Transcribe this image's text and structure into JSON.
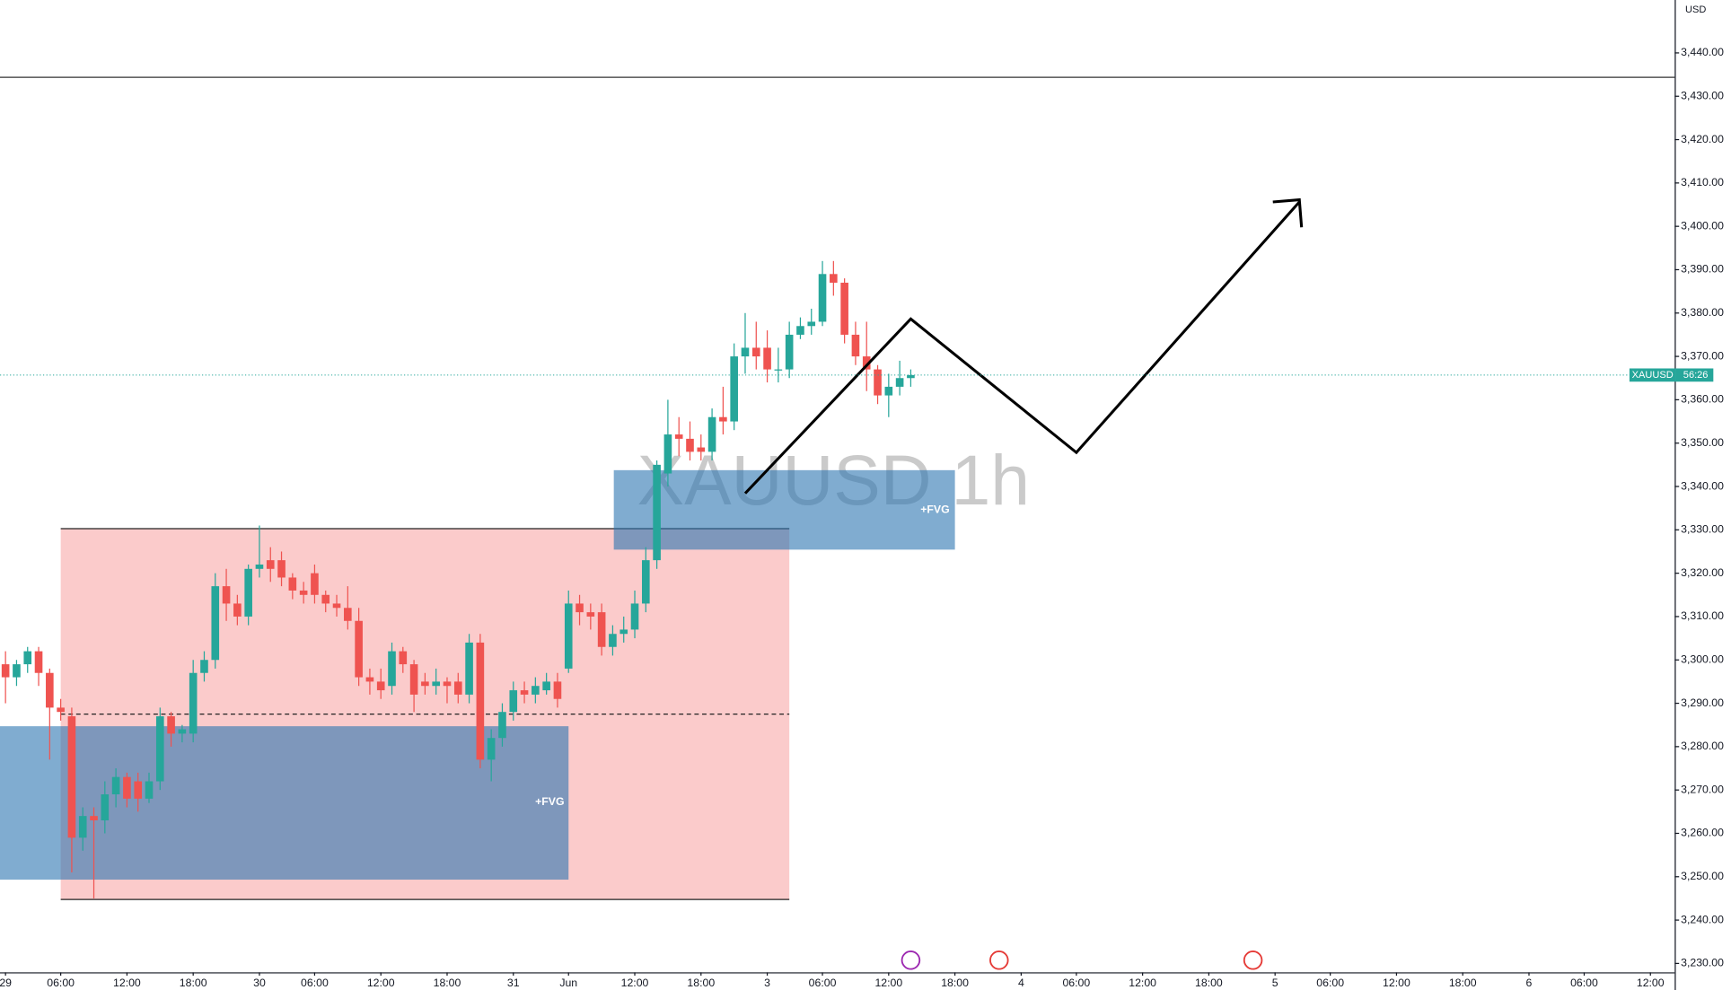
{
  "chart_data": {
    "type": "candlestick",
    "watermark": "XAUUSD 1h",
    "currency": "USD",
    "price_label": {
      "symbol": "XAUUSD",
      "countdown": "56:26"
    },
    "annotations": [
      "+FVG",
      "+FVG"
    ],
    "up_color": "#26a69a",
    "down_color": "#ef5350",
    "series": [
      {
        "name": "XAUUSD",
        "open": [
          3299,
          3296,
          3299,
          3302,
          3297,
          3289,
          3287,
          3259,
          3264,
          3263,
          3269,
          3273,
          3272,
          3268,
          3272,
          3287,
          3283,
          3283,
          3297,
          3300,
          3317,
          3313,
          3310,
          3321,
          3323,
          3323,
          3319,
          3316,
          3320,
          3315,
          3313,
          3312,
          3309,
          3296,
          3295,
          3294,
          3302,
          3299,
          3295,
          3294,
          3295,
          3295,
          3292,
          3304,
          3277,
          3282,
          3288,
          3293,
          3292,
          3293,
          3295,
          3298,
          3313,
          3311,
          3311,
          3303,
          3306,
          3307,
          3313,
          3323,
          3343,
          3352,
          3351,
          3349,
          3348,
          3356,
          3355,
          3370,
          3372,
          3372,
          3367,
          3367,
          3375,
          3377,
          3378,
          3389,
          3387,
          3375,
          3370,
          3367,
          3361,
          3363,
          3365
        ],
        "high": [
          3302,
          3300,
          3303,
          3303,
          3298,
          3291,
          3289,
          3266,
          3266,
          3272,
          3275,
          3274,
          3274,
          3274,
          3289,
          3288,
          3285,
          3300,
          3302,
          3320,
          3321,
          3315,
          3322,
          3331,
          3326,
          3325,
          3320,
          3318,
          3322,
          3316,
          3315,
          3317,
          3312,
          3298,
          3298,
          3304,
          3303,
          3300,
          3297,
          3298,
          3296,
          3297,
          3306,
          3306,
          3284,
          3290,
          3295,
          3295,
          3296,
          3297,
          3297,
          3316,
          3315,
          3313,
          3313,
          3308,
          3310,
          3316,
          3326,
          3346,
          3360,
          3356,
          3355,
          3352,
          3358,
          3363,
          3373,
          3380,
          3378,
          3376,
          3372,
          3378,
          3379,
          3381,
          3392,
          3392,
          3388,
          3378,
          3378,
          3368,
          3366,
          3369,
          3367
        ],
        "low": [
          3290,
          3294,
          3297,
          3294,
          3277,
          3286,
          3251,
          3256,
          3245,
          3260,
          3266,
          3266,
          3265,
          3267,
          3270,
          3280,
          3281,
          3281,
          3295,
          3298,
          3309,
          3308,
          3308,
          3319,
          3318,
          3317,
          3314,
          3313,
          3313,
          3311,
          3310,
          3307,
          3294,
          3292,
          3291,
          3292,
          3297,
          3288,
          3292,
          3292,
          3290,
          3290,
          3290,
          3275,
          3272,
          3280,
          3286,
          3290,
          3290,
          3292,
          3289,
          3297,
          3308,
          3307,
          3301,
          3301,
          3304,
          3305,
          3311,
          3321,
          3340,
          3347,
          3346,
          3346,
          3346,
          3352,
          3353,
          3366,
          3367,
          3364,
          3364,
          3365,
          3374,
          3375,
          3377,
          3384,
          3373,
          3368,
          3362,
          3359,
          3356,
          3361,
          3363
        ],
        "close": [
          3296,
          3299,
          3302,
          3297,
          3289,
          3288,
          3259,
          3264,
          3263,
          3269,
          3273,
          3268,
          3268,
          3272,
          3287,
          3283,
          3284,
          3297,
          3300,
          3317,
          3313,
          3310,
          3321,
          3322,
          3321,
          3319,
          3316,
          3315,
          3315,
          3313,
          3312,
          3309,
          3296,
          3295,
          3293,
          3302,
          3299,
          3292,
          3294,
          3295,
          3294,
          3292,
          3304,
          3277,
          3282,
          3288,
          3293,
          3292,
          3294,
          3295,
          3291,
          3313,
          3311,
          3310,
          3303,
          3306,
          3307,
          3313,
          3323,
          3345,
          3352,
          3351,
          3348,
          3348,
          3356,
          3355,
          3370,
          3372,
          3370,
          3367,
          3367,
          3375,
          3377,
          3378,
          3389,
          3387,
          3375,
          3370,
          3367,
          3361,
          3363,
          3365,
          3365.7
        ]
      }
    ],
    "xlim": [
      -0.5,
      151.2
    ],
    "xticks": [
      {
        "value": 0,
        "label": "29"
      },
      {
        "value": 5,
        "label": "06:00"
      },
      {
        "value": 11,
        "label": "12:00"
      },
      {
        "value": 17,
        "label": "18:00"
      },
      {
        "value": 23,
        "label": "30"
      },
      {
        "value": 28,
        "label": "06:00"
      },
      {
        "value": 34,
        "label": "12:00"
      },
      {
        "value": 40,
        "label": "18:00"
      },
      {
        "value": 46,
        "label": "31"
      },
      {
        "value": 51,
        "label": "Jun"
      },
      {
        "value": 57,
        "label": "12:00"
      },
      {
        "value": 63,
        "label": "18:00"
      },
      {
        "value": 69,
        "label": "3"
      },
      {
        "value": 74,
        "label": "06:00"
      },
      {
        "value": 80,
        "label": "12:00"
      },
      {
        "value": 86,
        "label": "18:00"
      },
      {
        "value": 92,
        "label": "4"
      },
      {
        "value": 97,
        "label": "06:00"
      },
      {
        "value": 103,
        "label": "12:00"
      },
      {
        "value": 109,
        "label": "18:00"
      },
      {
        "value": 115,
        "label": "5"
      },
      {
        "value": 120,
        "label": "06:00"
      },
      {
        "value": 126,
        "label": "12:00"
      },
      {
        "value": 132,
        "label": "18:00"
      },
      {
        "value": 138,
        "label": "6"
      },
      {
        "value": 143,
        "label": "06:00"
      },
      {
        "value": 149,
        "label": "12:00"
      }
    ],
    "ylim": [
      3228.2,
      3452.2
    ],
    "yticks": [
      {
        "value": 3230,
        "label": "3,230.00"
      },
      {
        "value": 3240,
        "label": "3,240.00"
      },
      {
        "value": 3250,
        "label": "3,250.00"
      },
      {
        "value": 3260,
        "label": "3,260.00"
      },
      {
        "value": 3270,
        "label": "3,270.00"
      },
      {
        "value": 3280,
        "label": "3,280.00"
      },
      {
        "value": 3290,
        "label": "3,290.00"
      },
      {
        "value": 3300,
        "label": "3,300.00"
      },
      {
        "value": 3310,
        "label": "3,310.00"
      },
      {
        "value": 3320,
        "label": "3,320.00"
      },
      {
        "value": 3330,
        "label": "3,330.00"
      },
      {
        "value": 3340,
        "label": "3,340.00"
      },
      {
        "value": 3350,
        "label": "3,350.00"
      },
      {
        "value": 3360,
        "label": "3,360.00"
      },
      {
        "value": 3370,
        "label": "3,370.00"
      },
      {
        "value": 3380,
        "label": "3,380.00"
      },
      {
        "value": 3390,
        "label": "3,390.00"
      },
      {
        "value": 3400,
        "label": "3,400.00"
      },
      {
        "value": 3410,
        "label": "3,410.00"
      },
      {
        "value": 3420,
        "label": "3,420.00"
      },
      {
        "value": 3430,
        "label": "3,430.00"
      },
      {
        "value": 3440,
        "label": "3,440.00"
      }
    ]
  }
}
